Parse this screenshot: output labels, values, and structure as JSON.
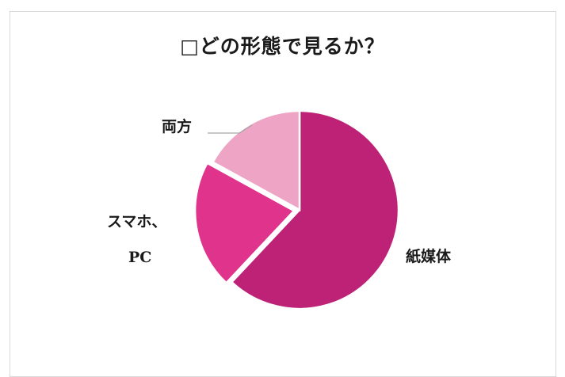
{
  "chart_data": {
    "type": "pie",
    "title": "□どの形態で見るか？",
    "slices": [
      {
        "label": "紙媒体",
        "value": 62,
        "color": "#bd2277"
      },
      {
        "label": "スマホ、PC",
        "value": 21,
        "color": "#e0338b"
      },
      {
        "label": "両方",
        "value": 17,
        "color": "#eea4c4"
      }
    ],
    "start_angle_deg": 0,
    "direction": "clockwise",
    "legend": "none",
    "data_labels": "category names outside slices"
  }
}
